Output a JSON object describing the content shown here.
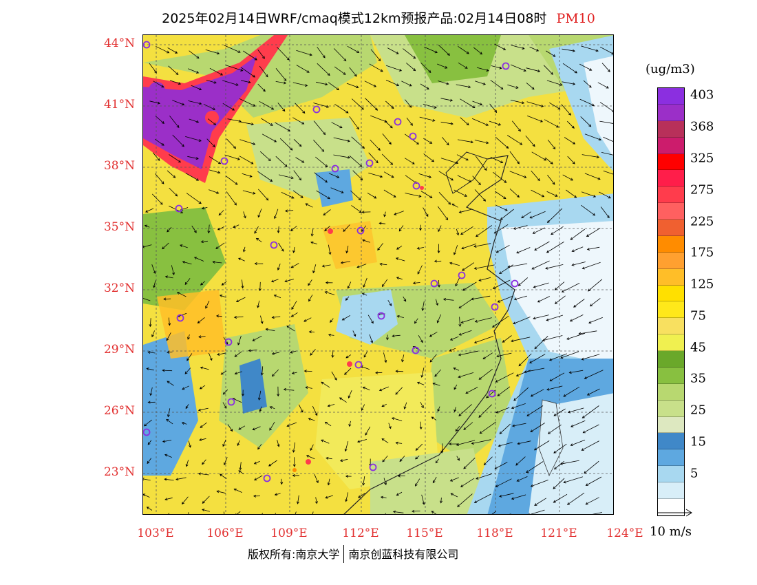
{
  "title": "2025年02月14日WRF/cmaq模式12km预报产品:02月14日08时",
  "species": "PM10",
  "legend_unit": "(ug/m3)",
  "legend": [
    {
      "label": "403",
      "color": "#8b2fe0"
    },
    {
      "label": "",
      "color": "#9b2fc8"
    },
    {
      "label": "368",
      "color": "#b8305a"
    },
    {
      "label": "",
      "color": "#cc1c6c"
    },
    {
      "label": "325",
      "color": "#ff0000"
    },
    {
      "label": "",
      "color": "#ff1e4a"
    },
    {
      "label": "275",
      "color": "#ff3c4c"
    },
    {
      "label": "",
      "color": "#ff6060"
    },
    {
      "label": "225",
      "color": "#f06030"
    },
    {
      "label": "",
      "color": "#ff8c00"
    },
    {
      "label": "175",
      "color": "#ffa030"
    },
    {
      "label": "",
      "color": "#ffbe28"
    },
    {
      "label": "125",
      "color": "#ffe000"
    },
    {
      "label": "",
      "color": "#ffe81a"
    },
    {
      "label": "75",
      "color": "#f8e060"
    },
    {
      "label": "",
      "color": "#f0f050"
    },
    {
      "label": "45",
      "color": "#6aa82a"
    },
    {
      "label": "",
      "color": "#88c040"
    },
    {
      "label": "35",
      "color": "#b8d870"
    },
    {
      "label": "",
      "color": "#c8e08a"
    },
    {
      "label": "25",
      "color": "#dde8c0"
    },
    {
      "label": "",
      "color": "#4088c8"
    },
    {
      "label": "15",
      "color": "#5ea8e0"
    },
    {
      "label": "",
      "color": "#a8d8f0"
    },
    {
      "label": "5",
      "color": "#d8eef8"
    },
    {
      "label": "",
      "color": "#ffffff"
    }
  ],
  "lat_labels": [
    "44°N",
    "41°N",
    "38°N",
    "35°N",
    "32°N",
    "29°N",
    "26°N",
    "23°N"
  ],
  "lon_labels": [
    "103°E",
    "106°E",
    "109°E",
    "112°E",
    "115°E",
    "118°E",
    "121°E",
    "124°E"
  ],
  "wind_reference": "10 m/s",
  "copyright_left": "版权所有:南京大学",
  "copyright_right": "南京创蓝科技有限公司",
  "map": {
    "lat_range": [
      21,
      44.5
    ],
    "lon_range": [
      102.7,
      124
    ],
    "colors": {
      "base": "#f4e040",
      "yellow_light": "#f2ea5a",
      "green": "#b8d870",
      "green_dark": "#88c040",
      "blue_light": "#a8d8f0",
      "blue": "#5ea8e0",
      "blue_dark": "#4088c8",
      "sea_white": "#eef7fc",
      "orange": "#ffbe28",
      "red": "#ff3c4c",
      "purple": "#9b2fc8",
      "marker": "#8b2fe0",
      "graticule": "#555555",
      "lat_label": "#e23030"
    }
  }
}
